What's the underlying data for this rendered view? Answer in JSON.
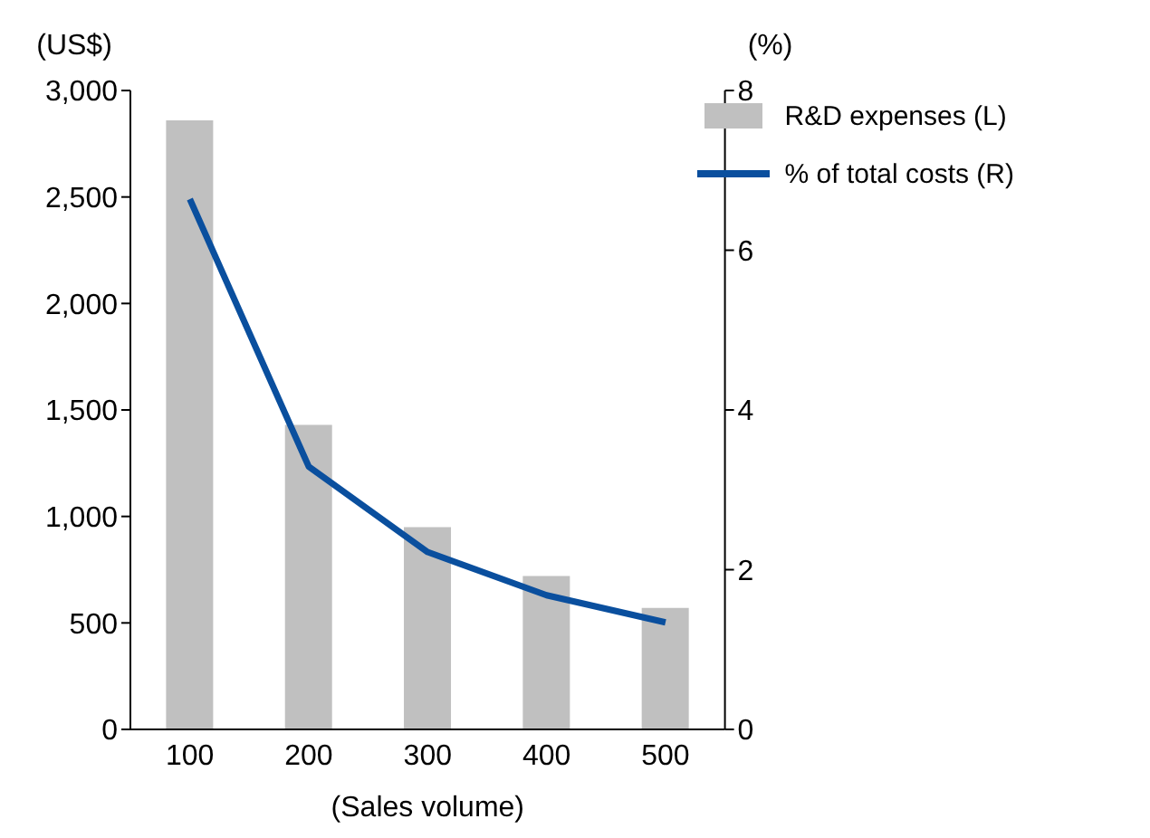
{
  "chart_data": {
    "type": "bar",
    "categories": [
      "100",
      "200",
      "300",
      "400",
      "500"
    ],
    "xlabel": "(Sales volume)",
    "ylabel": "(US$)",
    "y2label": "(%)",
    "series": [
      {
        "name": "R&D expenses (L)",
        "color": "#c0c0c0",
        "values": [
          2860,
          1430,
          950,
          720,
          570
        ]
      },
      {
        "name": "% of total costs (R)",
        "type": "line",
        "axis": "y2",
        "color": "#0a4f9e",
        "values": [
          6.64,
          3.29,
          2.22,
          1.68,
          1.34
        ]
      }
    ],
    "ylim": [
      0,
      3000
    ],
    "yticks": [
      {
        "value": 0,
        "label": "0"
      },
      {
        "value": 500,
        "label": "500"
      },
      {
        "value": 1000,
        "label": "1,000"
      },
      {
        "value": 1500,
        "label": "1,500"
      },
      {
        "value": 2000,
        "label": "2,000"
      },
      {
        "value": 2500,
        "label": "2,500"
      },
      {
        "value": 3000,
        "label": "3,000"
      }
    ],
    "y2lim": [
      0,
      8
    ],
    "y2ticks": [
      0,
      2,
      4,
      6,
      8
    ],
    "grid": false,
    "legend": "top right",
    "marker": "none"
  }
}
